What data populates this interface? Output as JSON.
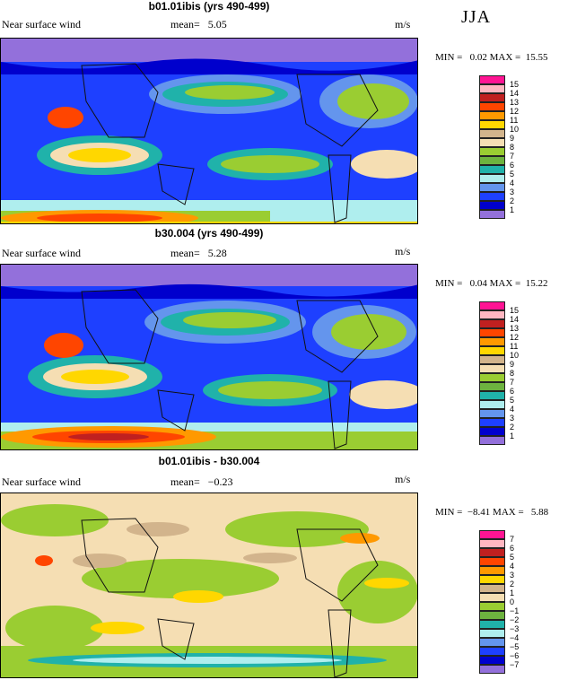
{
  "season": "JJA",
  "panels": [
    {
      "title": "b01.01ibis (yrs 490-499)",
      "variable": "Near surface wind",
      "mean_label": "mean=",
      "mean": "5.05",
      "units": "m/s",
      "minmax": "MIN =   0.02 MAX =  15.55",
      "legend": {
        "labels": [
          "15",
          "14",
          "13",
          "12",
          "11",
          "10",
          "9",
          "8",
          "7",
          "6",
          "5",
          "4",
          "3",
          "2",
          "1"
        ],
        "colors": [
          "#ff1493",
          "#ffb6c1",
          "#c02020",
          "#ff4500",
          "#ff9900",
          "#ffd700",
          "#d2b48c",
          "#f5deb3",
          "#9acd32",
          "#6db33f",
          "#20b2aa",
          "#afeeee",
          "#6495ed",
          "#1e40ff",
          "#0000cd",
          "#9370db"
        ]
      }
    },
    {
      "title": "b30.004 (yrs 490-499)",
      "variable": "Near surface wind",
      "mean_label": "mean=",
      "mean": "5.28",
      "units": "m/s",
      "minmax": "MIN =   0.04 MAX =  15.22",
      "legend": {
        "labels": [
          "15",
          "14",
          "13",
          "12",
          "11",
          "10",
          "9",
          "8",
          "7",
          "6",
          "5",
          "4",
          "3",
          "2",
          "1"
        ],
        "colors": [
          "#ff1493",
          "#ffb6c1",
          "#c02020",
          "#ff4500",
          "#ff9900",
          "#ffd700",
          "#d2b48c",
          "#f5deb3",
          "#9acd32",
          "#6db33f",
          "#20b2aa",
          "#afeeee",
          "#6495ed",
          "#1e40ff",
          "#0000cd",
          "#9370db"
        ]
      }
    },
    {
      "title": "b01.01ibis - b30.004",
      "variable": "Near surface wind",
      "mean_label": "mean=",
      "mean": "−0.23",
      "units": "m/s",
      "minmax": "MIN =  −8.41 MAX =   5.88",
      "legend": {
        "labels": [
          "7",
          "6",
          "5",
          "4",
          "3",
          "2",
          "1",
          "0",
          "−1",
          "−2",
          "−3",
          "−4",
          "−5",
          "−6",
          "−7"
        ],
        "colors": [
          "#ff1493",
          "#ffb6c1",
          "#c02020",
          "#ff4500",
          "#ff9900",
          "#ffd700",
          "#d2b48c",
          "#f5deb3",
          "#9acd32",
          "#6db33f",
          "#20b2aa",
          "#afeeee",
          "#6495ed",
          "#1e40ff",
          "#0000cd",
          "#9370db"
        ]
      }
    }
  ]
}
